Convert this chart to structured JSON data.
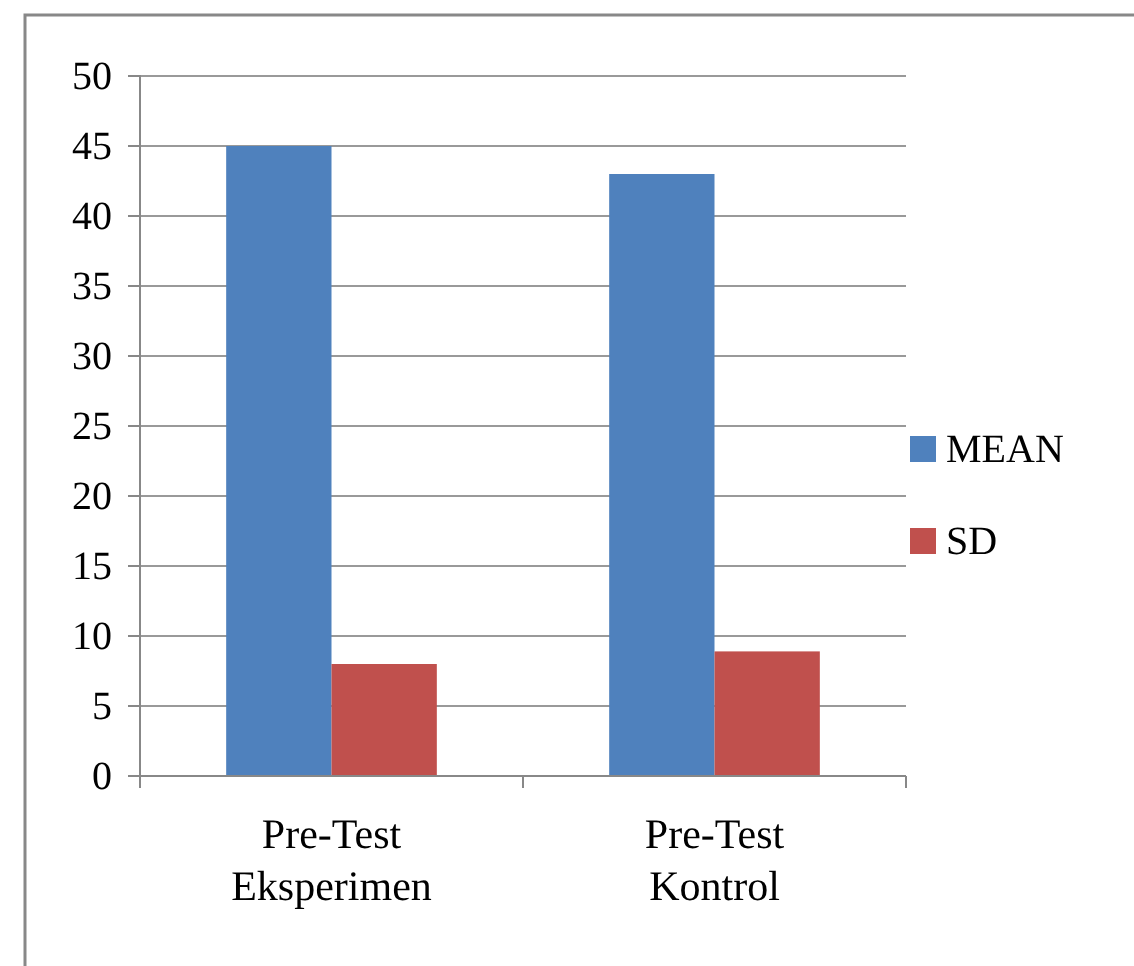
{
  "chart_data": {
    "type": "bar",
    "categories": [
      "Pre-Test Eksperimen",
      "Pre-Test Kontrol"
    ],
    "series": [
      {
        "name": "MEAN",
        "color": "#4f81bd",
        "values": [
          45,
          43
        ]
      },
      {
        "name": "SD",
        "color": "#c0504d",
        "values": [
          8,
          8.9
        ]
      }
    ],
    "ylim": [
      0,
      50
    ],
    "yticks": [
      0,
      5,
      10,
      15,
      20,
      25,
      30,
      35,
      40,
      45,
      50
    ],
    "grid": "y",
    "legend": "right"
  }
}
